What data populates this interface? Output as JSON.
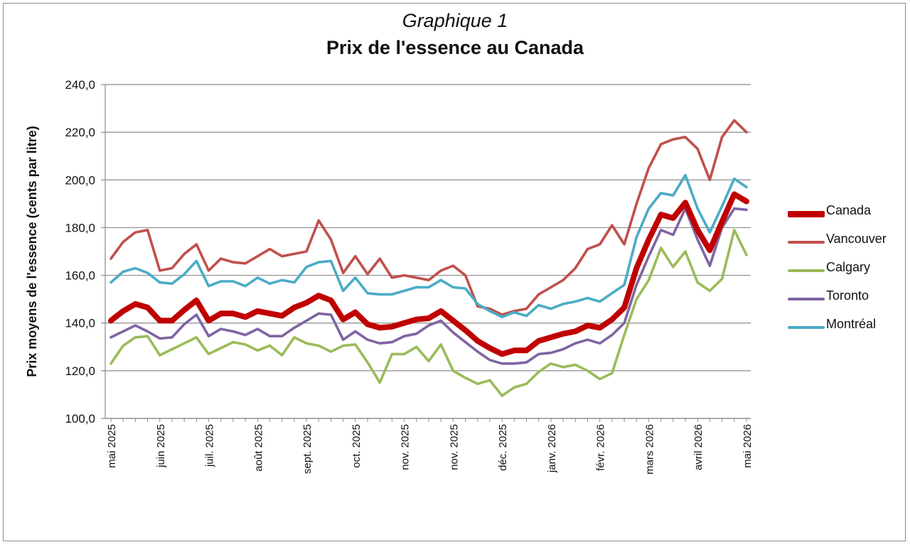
{
  "chart_data": {
    "type": "line",
    "title": "Graphique 1",
    "subtitle": "Prix de l'essence au Canada",
    "ylabel": "Prix moyens de l'essence (cents par litre)",
    "xlabel": "",
    "ylim": [
      100,
      240
    ],
    "ytick_step": 20,
    "grid": true,
    "legend_position": "right",
    "x_tick_labels": [
      "mai 2025",
      "juin 2025",
      "juil. 2025",
      "août 2025",
      "sept. 2025",
      "oct. 2025",
      "nov. 2025",
      "nov. 2025",
      "déc. 2025",
      "janv. 2026",
      "févr. 2026",
      "mars 2026",
      "avril 2026",
      "mai 2026"
    ],
    "x_tick_index": [
      0,
      4,
      8,
      12,
      16,
      20,
      24,
      28,
      32,
      36,
      40,
      44,
      48,
      52
    ],
    "y_tick_labels": [
      "100,0",
      "120,0",
      "140,0",
      "160,0",
      "180,0",
      "200,0",
      "220,0",
      "240,0"
    ],
    "series": [
      {
        "name": "Vancouver",
        "color": "#c0504d",
        "values": [
          167,
          174,
          178,
          179,
          162,
          163,
          169,
          173,
          162,
          167,
          165.5,
          165,
          168,
          171,
          168,
          169,
          170,
          183,
          175,
          161,
          168,
          160.5,
          167,
          159,
          160,
          159,
          158,
          162,
          164,
          160,
          147,
          146,
          143.5,
          145,
          146,
          152,
          155,
          158,
          163,
          171,
          173,
          181,
          173,
          190,
          205,
          215,
          217,
          218,
          213,
          200,
          218,
          225,
          220
        ]
      },
      {
        "name": "Calgary",
        "color": "#9bbb59",
        "values": [
          123,
          130.5,
          134,
          134.5,
          126.5,
          129,
          131.5,
          134,
          127,
          129.5,
          132,
          131,
          128.5,
          130.5,
          126.5,
          134,
          131.5,
          130.5,
          128,
          130.5,
          131,
          123.5,
          115,
          127,
          127,
          130,
          124,
          131,
          120,
          117,
          114.5,
          116,
          109.5,
          113,
          114.5,
          119.5,
          123,
          121.5,
          122.5,
          120,
          116.5,
          119,
          135,
          150,
          158,
          171.5,
          163.5,
          170,
          157,
          153.5,
          158.5,
          179,
          168.5
        ]
      },
      {
        "name": "Toronto",
        "color": "#8064a2",
        "values": [
          134,
          136.5,
          139,
          136.5,
          133.5,
          134,
          139.5,
          143.5,
          134.5,
          137.5,
          136.5,
          135,
          137.5,
          134.5,
          134.5,
          138,
          141,
          144,
          143.5,
          133,
          136.5,
          133,
          131.5,
          132,
          134.5,
          135.5,
          139,
          141,
          136,
          132,
          128,
          124.5,
          123,
          123,
          123.5,
          127,
          127.5,
          129,
          131.5,
          133,
          131.5,
          135,
          140,
          156,
          168,
          179,
          177,
          188,
          175,
          164,
          180,
          188,
          187.5
        ]
      },
      {
        "name": "Montréal",
        "color": "#4bacc6",
        "values": [
          157,
          161.5,
          163,
          161,
          157,
          156.5,
          160.5,
          166,
          155.5,
          157.5,
          157.5,
          155.5,
          159,
          156.5,
          158,
          157,
          163.5,
          165.5,
          166,
          153.5,
          159,
          152.5,
          152,
          152,
          153.5,
          155,
          155,
          158,
          155,
          154.5,
          148,
          145,
          142.5,
          144.5,
          143,
          147.5,
          146,
          148,
          149,
          150.5,
          149,
          152.5,
          156,
          176,
          188,
          194.5,
          193.5,
          202,
          188,
          178,
          189,
          200.5,
          197
        ]
      },
      {
        "name": "Canada",
        "color": "#c00000",
        "values": [
          141,
          145,
          148,
          146.5,
          141,
          141,
          145.5,
          149.5,
          141,
          144,
          144,
          142.5,
          145,
          144,
          143,
          146.5,
          148.5,
          151.5,
          149.5,
          141.5,
          144.5,
          139.5,
          138,
          138.5,
          140,
          141.5,
          142,
          145,
          141,
          137,
          132.5,
          129.5,
          127,
          128.5,
          128.5,
          132.5,
          134,
          135.5,
          136.5,
          139,
          138,
          141.5,
          146.5,
          163,
          175,
          185.5,
          184,
          190.5,
          179,
          170.5,
          182.5,
          194,
          191
        ]
      }
    ]
  }
}
